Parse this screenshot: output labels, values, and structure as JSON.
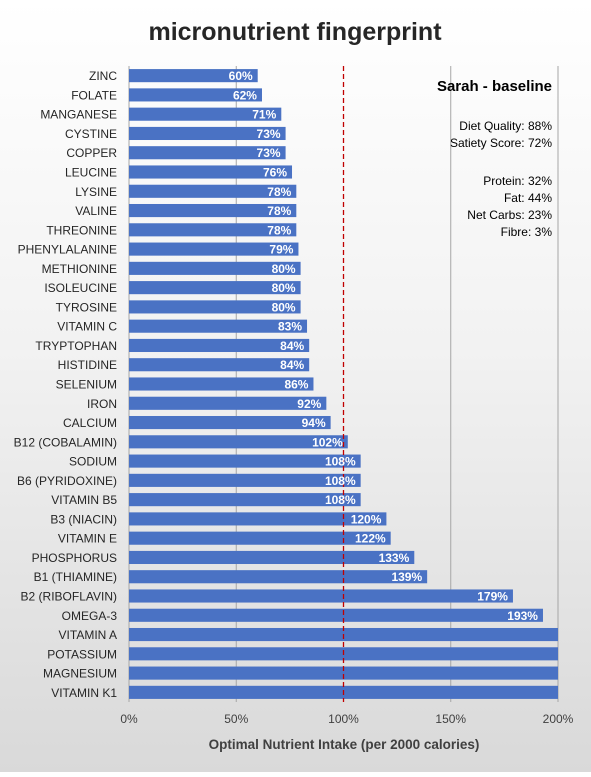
{
  "chart_data": {
    "type": "bar",
    "orientation": "horizontal",
    "title": "micronutrient fingerprint",
    "xlabel": "Optimal Nutrient Intake (per 2000 calories)",
    "ylabel": "",
    "xlim": [
      0,
      200
    ],
    "xticks": [
      "0%",
      "50%",
      "100%",
      "150%",
      "200%"
    ],
    "reference_line": {
      "value": 100,
      "style": "dashed",
      "color": "#c00000"
    },
    "grid": "vertical",
    "categories": [
      "ZINC",
      "FOLATE",
      "MANGANESE",
      "CYSTINE",
      "COPPER",
      "LEUCINE",
      "LYSINE",
      "VALINE",
      "THREONINE",
      "PHENYLALANINE",
      "METHIONINE",
      "ISOLEUCINE",
      "TYROSINE",
      "VITAMIN C",
      "TRYPTOPHAN",
      "HISTIDINE",
      "SELENIUM",
      "IRON",
      "CALCIUM",
      "B12 (COBALAMIN)",
      "SODIUM",
      "B6 (PYRIDOXINE)",
      "VITAMIN B5",
      "B3 (NIACIN)",
      "VITAMIN E",
      "PHOSPHORUS",
      "B1 (THIAMINE)",
      "B2 (RIBOFLAVIN)",
      "OMEGA-3",
      "VITAMIN A",
      "POTASSIUM",
      "MAGNESIUM",
      "VITAMIN K1"
    ],
    "values": [
      60,
      62,
      71,
      73,
      73,
      76,
      78,
      78,
      78,
      79,
      80,
      80,
      80,
      83,
      84,
      84,
      86,
      92,
      94,
      102,
      108,
      108,
      108,
      120,
      122,
      133,
      139,
      179,
      193,
      200,
      200,
      200,
      200
    ],
    "labels": [
      "60%",
      "62%",
      "71%",
      "73%",
      "73%",
      "76%",
      "78%",
      "78%",
      "78%",
      "79%",
      "80%",
      "80%",
      "80%",
      "83%",
      "84%",
      "84%",
      "86%",
      "92%",
      "94%",
      "102%",
      "108%",
      "108%",
      "108%",
      "120%",
      "122%",
      "133%",
      "139%",
      "179%",
      "193%",
      "",
      "",
      "",
      ""
    ],
    "bar_color": "#4a72c4"
  },
  "annotation": {
    "name": "Sarah - baseline",
    "lines_group1": [
      "Diet Quality: 88%",
      "Satiety Score: 72%"
    ],
    "lines_group2": [
      "Protein: 32%",
      "Fat: 44%",
      "Net Carbs: 23%",
      "Fibre: 3%"
    ]
  }
}
